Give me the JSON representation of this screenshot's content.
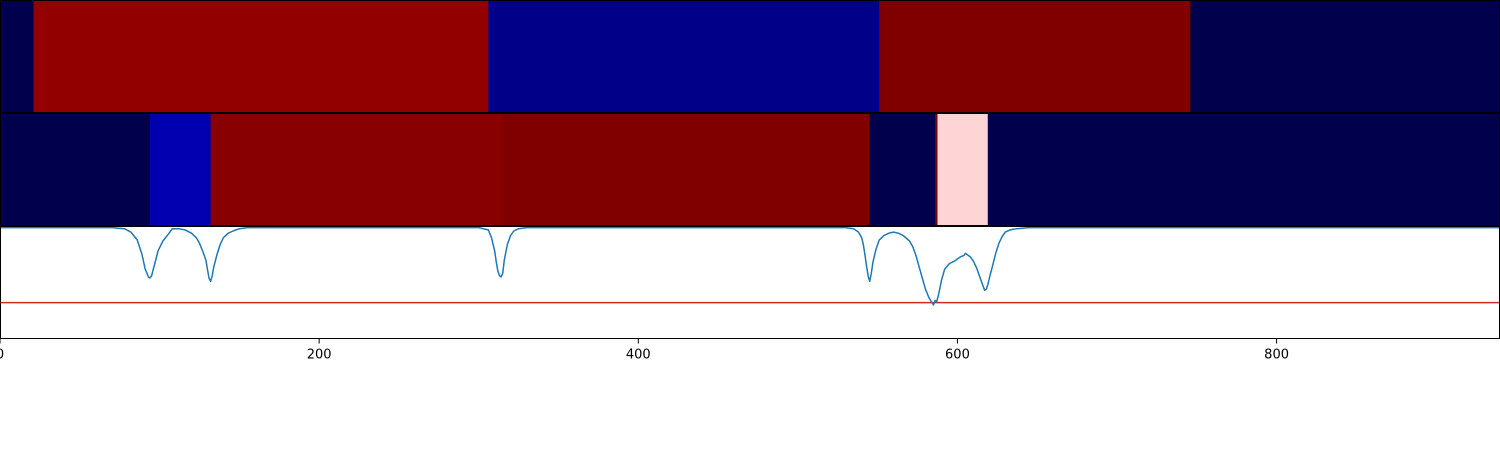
{
  "chart_data": [
    {
      "type": "heatmap",
      "xlim": [
        0,
        940
      ],
      "segments": [
        {
          "start": 0,
          "end": 21,
          "color": "#00004c"
        },
        {
          "start": 21,
          "end": 306,
          "color": "#930000"
        },
        {
          "start": 306,
          "end": 551,
          "color": "#000089"
        },
        {
          "start": 551,
          "end": 746,
          "color": "#800000"
        },
        {
          "start": 746,
          "end": 940,
          "color": "#00004c"
        }
      ]
    },
    {
      "type": "heatmap",
      "xlim": [
        0,
        940
      ],
      "segments": [
        {
          "start": 0,
          "end": 94,
          "color": "#00004c"
        },
        {
          "start": 94,
          "end": 132,
          "color": "#0000b0"
        },
        {
          "start": 132,
          "end": 315,
          "color": "#880000"
        },
        {
          "start": 315,
          "end": 545,
          "color": "#800000"
        },
        {
          "start": 545,
          "end": 586,
          "color": "#00004c"
        },
        {
          "start": 586,
          "end": 587.5,
          "color": "#800000"
        },
        {
          "start": 587.5,
          "end": 619,
          "color": "#ffd4d4"
        },
        {
          "start": 619,
          "end": 940,
          "color": "#00004c"
        }
      ]
    },
    {
      "type": "line",
      "xlim": [
        0,
        940
      ],
      "ylim": [
        -1,
        0
      ],
      "xticks": [
        0,
        200,
        400,
        600,
        800
      ],
      "grid": false,
      "threshold": {
        "y": -0.68,
        "color": "#d62728"
      },
      "series": [
        {
          "color": "#1f77b4",
          "x": [
            0,
            70,
            78,
            82,
            86,
            89,
            91,
            93,
            94,
            95,
            97,
            99,
            102,
            106,
            108,
            112,
            116,
            120,
            123,
            125,
            127,
            129,
            130,
            131,
            132,
            133,
            134,
            136,
            138,
            140,
            143,
            146,
            150,
            155,
            162,
            170,
            180,
            200,
            300,
            306,
            308,
            310,
            311,
            312,
            313,
            314,
            315,
            316,
            318,
            320,
            322,
            325,
            330,
            340,
            400,
            500,
            530,
            535,
            538,
            540,
            541,
            542,
            543,
            544,
            545,
            546,
            547,
            549,
            551,
            554,
            557,
            560,
            563,
            566,
            570,
            572,
            574,
            576,
            578,
            580,
            582,
            584,
            585,
            586,
            587,
            588,
            589,
            590,
            592,
            595,
            598,
            600,
            602,
            604,
            605,
            606,
            608,
            610,
            612,
            614,
            616,
            617,
            618,
            619,
            620,
            622,
            624,
            626,
            628,
            630,
            633,
            637,
            645,
            660,
            700,
            800,
            940
          ],
          "y": [
            -0.01,
            -0.01,
            -0.02,
            -0.05,
            -0.12,
            -0.25,
            -0.38,
            -0.45,
            -0.46,
            -0.44,
            -0.33,
            -0.22,
            -0.13,
            -0.06,
            -0.02,
            -0.02,
            -0.03,
            -0.06,
            -0.1,
            -0.15,
            -0.22,
            -0.3,
            -0.38,
            -0.46,
            -0.49,
            -0.44,
            -0.36,
            -0.25,
            -0.16,
            -0.1,
            -0.06,
            -0.04,
            -0.02,
            -0.01,
            -0.01,
            -0.01,
            -0.01,
            -0.01,
            -0.01,
            -0.03,
            -0.1,
            -0.22,
            -0.32,
            -0.4,
            -0.44,
            -0.45,
            -0.42,
            -0.3,
            -0.16,
            -0.08,
            -0.04,
            -0.02,
            -0.01,
            -0.01,
            -0.01,
            -0.01,
            -0.01,
            -0.02,
            -0.05,
            -0.1,
            -0.16,
            -0.25,
            -0.35,
            -0.44,
            -0.49,
            -0.42,
            -0.32,
            -0.2,
            -0.12,
            -0.08,
            -0.06,
            -0.05,
            -0.06,
            -0.08,
            -0.13,
            -0.18,
            -0.26,
            -0.36,
            -0.46,
            -0.56,
            -0.63,
            -0.68,
            -0.7,
            -0.66,
            -0.67,
            -0.62,
            -0.55,
            -0.48,
            -0.38,
            -0.33,
            -0.31,
            -0.29,
            -0.27,
            -0.26,
            -0.24,
            -0.25,
            -0.27,
            -0.31,
            -0.37,
            -0.45,
            -0.53,
            -0.57,
            -0.56,
            -0.52,
            -0.46,
            -0.35,
            -0.24,
            -0.15,
            -0.09,
            -0.05,
            -0.03,
            -0.02,
            -0.01,
            -0.01,
            -0.01,
            -0.01,
            -0.01
          ]
        }
      ]
    }
  ]
}
